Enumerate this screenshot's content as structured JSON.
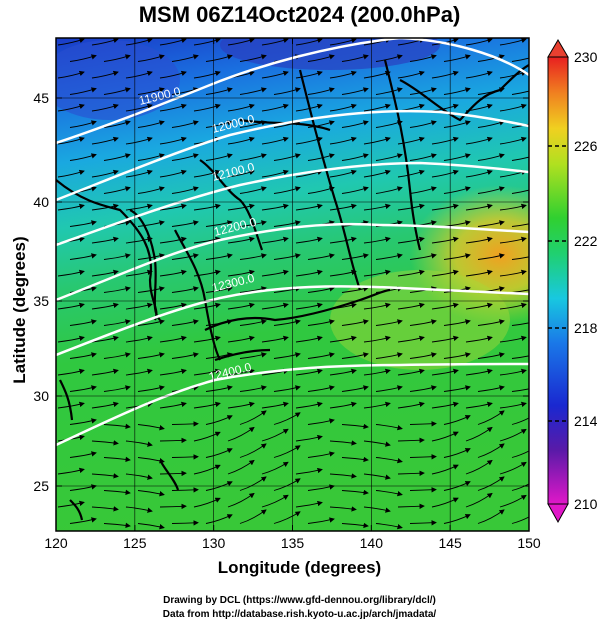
{
  "title": "MSM 06Z14Oct2024 (200.0hPa)",
  "x_axis": {
    "label": "Longitude (degrees)",
    "ticks": [
      "120",
      "125",
      "130",
      "135",
      "140",
      "145",
      "150"
    ]
  },
  "y_axis": {
    "label": "Latitude  (degrees)",
    "ticks": [
      "45",
      "40",
      "35",
      "30",
      "25"
    ]
  },
  "colorbar": {
    "ticks": [
      "230",
      "226",
      "222",
      "218",
      "214",
      "210"
    ],
    "range": [
      210,
      230
    ]
  },
  "contours": [
    {
      "label": "11900.0"
    },
    {
      "label": "12000.0"
    },
    {
      "label": "12100.0"
    },
    {
      "label": "12200.0"
    },
    {
      "label": "12300.0"
    },
    {
      "label": "12400.0"
    }
  ],
  "credits": {
    "line1": "Drawing by DCL (https://www.gfd-dennou.org/library/dcl/)",
    "line2": "Data from http://database.rish.kyoto-u.ac.jp/arch/jmadata/"
  },
  "colors": {
    "cold": "#1a3fc8",
    "mid": "#22c6a8",
    "green": "#2ec840",
    "warm": "#f0a020",
    "contour": "#ffffff",
    "coast": "#000000"
  }
}
